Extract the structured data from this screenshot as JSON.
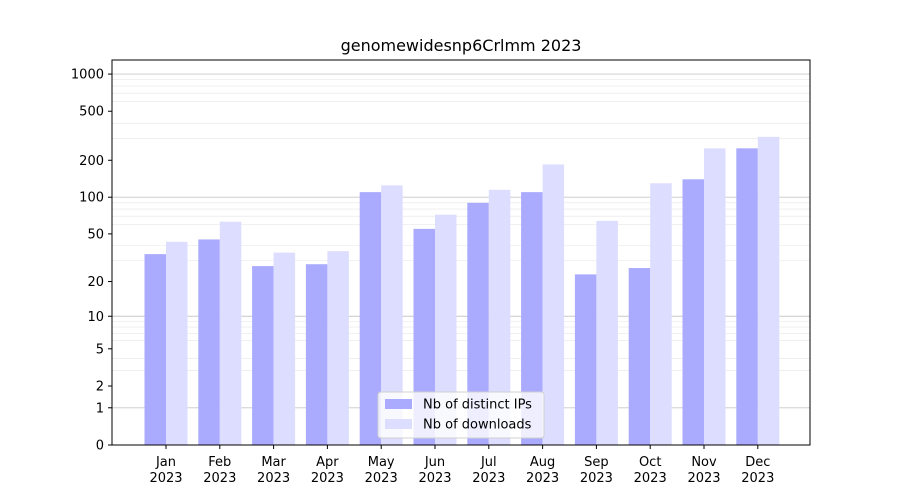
{
  "chart_data": {
    "type": "bar",
    "title": "genomewidesnp6Crlmm 2023",
    "xlabel": "",
    "ylabel": "",
    "y_scale": "log(1+y)",
    "ylim": [
      0,
      1300
    ],
    "y_ticks": [
      0,
      1,
      2,
      5,
      10,
      20,
      50,
      100,
      200,
      500,
      1000
    ],
    "y_tick_labels": [
      "0",
      "1",
      "2",
      "5",
      "10",
      "20",
      "50",
      "100",
      "200",
      "500",
      "1000"
    ],
    "categories": [
      "Jan",
      "Feb",
      "Mar",
      "Apr",
      "May",
      "Jun",
      "Jul",
      "Aug",
      "Sep",
      "Oct",
      "Nov",
      "Dec"
    ],
    "category_sublabels": [
      "2023",
      "2023",
      "2023",
      "2023",
      "2023",
      "2023",
      "2023",
      "2023",
      "2023",
      "2023",
      "2023",
      "2023"
    ],
    "series": [
      {
        "name": "Nb of distinct IPs",
        "color": "#aaaaff",
        "values": [
          34,
          45,
          27,
          28,
          110,
          55,
          90,
          110,
          23,
          26,
          140,
          250
        ]
      },
      {
        "name": "Nb of downloads",
        "color": "#ddddff",
        "values": [
          43,
          63,
          35,
          36,
          125,
          72,
          115,
          185,
          64,
          130,
          250,
          310
        ]
      }
    ],
    "grid": true,
    "legend_position": "lower-center"
  }
}
